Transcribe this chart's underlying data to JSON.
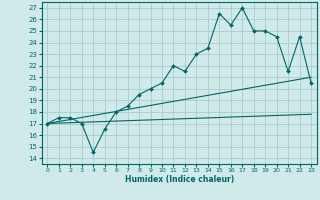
{
  "title": "",
  "xlabel": "Humidex (Indice chaleur)",
  "bg_color": "#d0eaea",
  "grid_color": "#a8cccc",
  "line_color": "#006666",
  "xlim": [
    -0.5,
    23.5
  ],
  "ylim": [
    13.5,
    27.5
  ],
  "yticks": [
    14,
    15,
    16,
    17,
    18,
    19,
    20,
    21,
    22,
    23,
    24,
    25,
    26,
    27
  ],
  "xticks": [
    0,
    1,
    2,
    3,
    4,
    5,
    6,
    7,
    8,
    9,
    10,
    11,
    12,
    13,
    14,
    15,
    16,
    17,
    18,
    19,
    20,
    21,
    22,
    23
  ],
  "main_x": [
    0,
    1,
    2,
    3,
    4,
    5,
    6,
    7,
    8,
    9,
    10,
    11,
    12,
    13,
    14,
    15,
    16,
    17,
    18,
    19,
    20,
    21,
    22,
    23
  ],
  "main_y": [
    17.0,
    17.5,
    17.5,
    17.0,
    14.5,
    16.5,
    18.0,
    18.5,
    19.5,
    20.0,
    20.5,
    22.0,
    21.5,
    23.0,
    23.5,
    26.5,
    25.5,
    27.0,
    25.0,
    25.0,
    24.5,
    21.5,
    24.5,
    20.5
  ],
  "line1_x": [
    0,
    23
  ],
  "line1_y": [
    17.0,
    21.0
  ],
  "line2_x": [
    0,
    23
  ],
  "line2_y": [
    17.0,
    17.8
  ]
}
